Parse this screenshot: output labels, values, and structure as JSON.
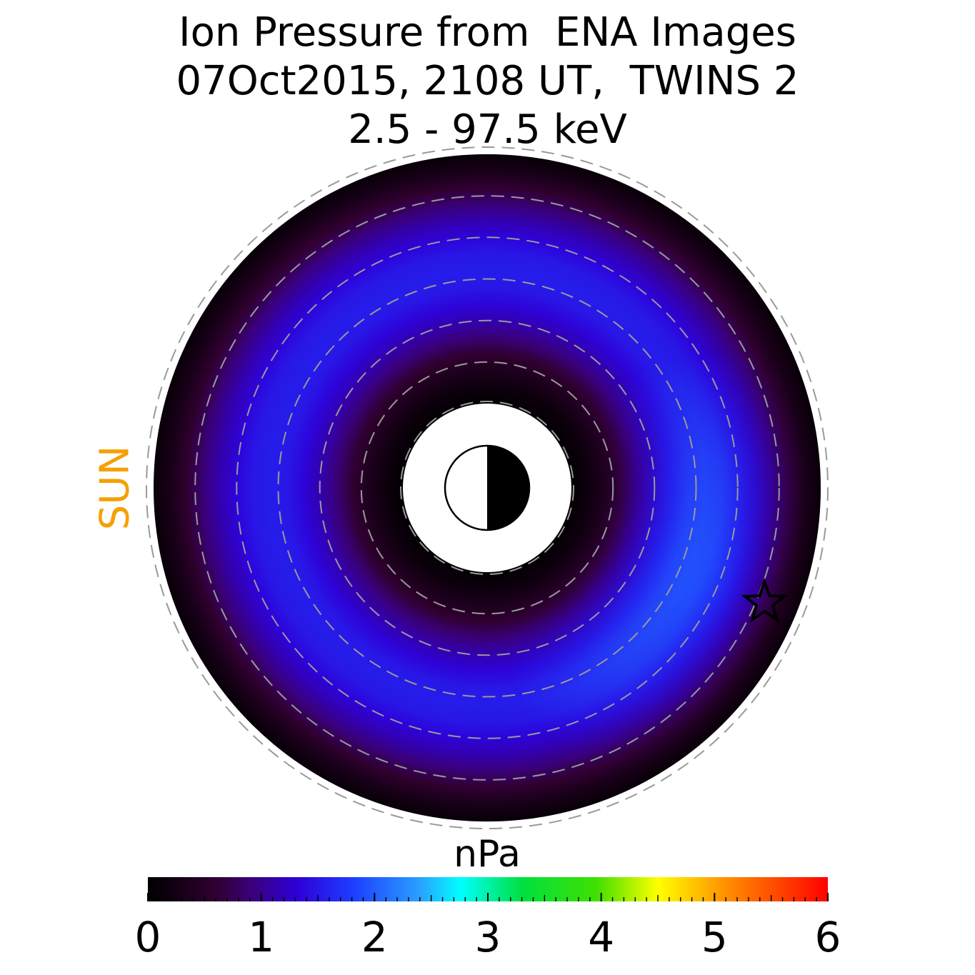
{
  "chart_data": {
    "type": "heatmap",
    "projection": "polar equatorial plane",
    "title_lines": [
      "Ion Pressure from  ENA Images",
      "07Oct2015, 2108 UT,  TWINS 2",
      "2.5 - 97.5 keV"
    ],
    "sun_label": "SUN",
    "colorbar": {
      "label": "nPa",
      "min": 0,
      "max": 6,
      "ticks": [
        "0",
        "1",
        "2",
        "3",
        "4",
        "5",
        "6"
      ],
      "colormap": "black-purple-blue-cyan-green-yellow-red"
    },
    "radial_extent_re": [
      2,
      8
    ],
    "pressure_profile": {
      "r_re": [
        2.0,
        2.4,
        2.8,
        3.2,
        3.6,
        4.0,
        4.4,
        4.8,
        5.2,
        5.6,
        6.0,
        6.4,
        6.8,
        7.2,
        7.6,
        8.0
      ],
      "pressure_npa": [
        0.05,
        0.15,
        0.35,
        0.6,
        0.9,
        1.15,
        1.35,
        1.5,
        1.55,
        1.5,
        1.35,
        1.15,
        0.9,
        0.6,
        0.3,
        0.1
      ]
    },
    "peak": {
      "pressure_npa": 2.0,
      "mlt_hours": 1.5
    },
    "dashed_circles_re": [
      2,
      3,
      4,
      5,
      6,
      7,
      8
    ],
    "marker": {
      "symbol": "star",
      "r_re": 7.2,
      "mlt_hours": 1.5
    },
    "earth": {
      "dayside": "white",
      "nightside": "black"
    },
    "colors": {
      "sun": "#f5a000",
      "grid": "#9a9a9a"
    }
  }
}
